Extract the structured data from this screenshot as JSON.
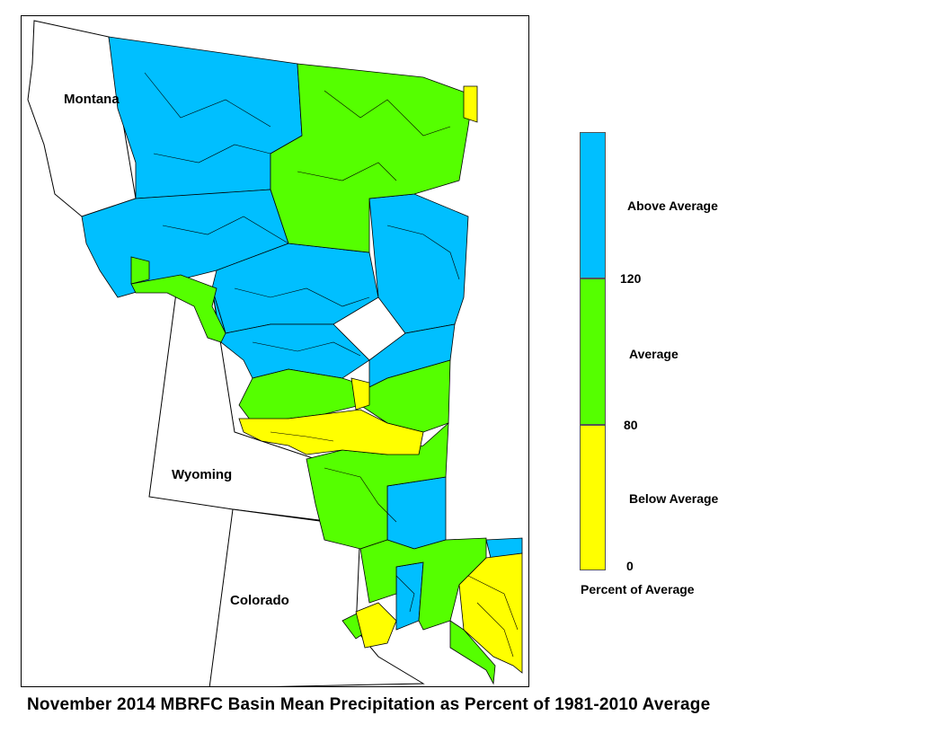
{
  "map": {
    "states": [
      {
        "key": "montana",
        "label": "Montana"
      },
      {
        "key": "wyoming",
        "label": "Wyoming"
      },
      {
        "key": "colorado",
        "label": "Colorado"
      }
    ],
    "category_colors": {
      "above": "#00BFFF",
      "average": "#55FF00",
      "below": "#FFFF00"
    }
  },
  "legend": {
    "title": "Percent of Average",
    "categories": [
      {
        "key": "above",
        "label": "Above Average",
        "color": "#00BFFF"
      },
      {
        "key": "average",
        "label": "Average",
        "color": "#55FF00"
      },
      {
        "key": "below",
        "label": "Below Average",
        "color": "#FFFF00"
      }
    ],
    "breaks": [
      "120",
      "80",
      "0"
    ]
  },
  "caption": "November 2014 MBRFC Basin Mean Precipitation as Percent of 1981-2010 Average"
}
